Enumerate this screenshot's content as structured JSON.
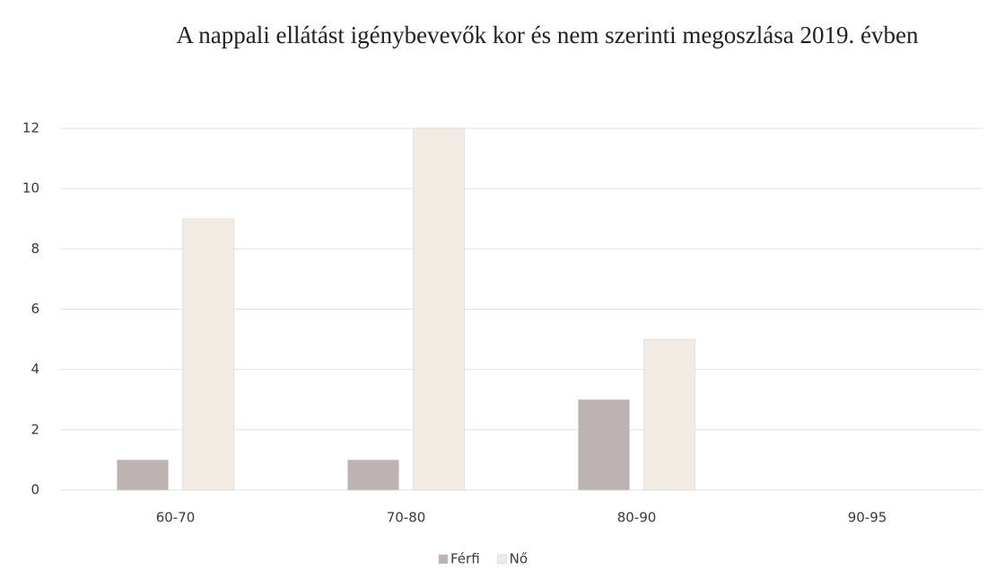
{
  "chart_data": {
    "type": "bar",
    "title": "A nappali ellátást igénybevevők kor és nem szerinti megoszlása 2019. évben",
    "categories": [
      "60-70",
      "70-80",
      "80-90",
      "90-95"
    ],
    "series": [
      {
        "name": "Férfi",
        "color": "#bdb3b2",
        "values": [
          1,
          1,
          3,
          0
        ]
      },
      {
        "name": "Nő",
        "color": "#f1ebe4",
        "values": [
          9,
          12,
          5,
          0
        ]
      }
    ],
    "ylim": [
      0,
      12
    ],
    "yticks": [
      0,
      2,
      4,
      6,
      8,
      10,
      12
    ],
    "grid": true,
    "legend": "bottom"
  }
}
